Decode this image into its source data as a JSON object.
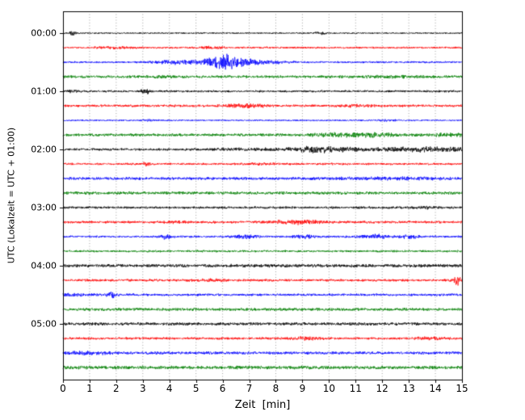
{
  "chart_data": {
    "type": "line",
    "chart_kind": "helicorder-seismogram",
    "title": "",
    "xlabel": "Zeit  [min]",
    "ylabel": "UTC (Lokalzeit = UTC + 01:00)",
    "xlim": [
      0,
      15
    ],
    "minutes_per_line": 15,
    "grid": "dotted-vertical-each-minute",
    "legend": "none",
    "xticks": [
      "0",
      "1",
      "2",
      "3",
      "4",
      "5",
      "6",
      "7",
      "8",
      "9",
      "10",
      "11",
      "12",
      "13",
      "14",
      "15"
    ],
    "ytick_labels": [
      "00:00",
      "01:00",
      "02:00",
      "03:00",
      "04:00",
      "05:00"
    ],
    "colors_cycle": [
      "#000000",
      "#ff0000",
      "#0000ff",
      "#008000"
    ],
    "traces": [
      {
        "start": "00:00",
        "color": "#000000",
        "base": 1.1,
        "events": [
          {
            "c": 0.35,
            "w": 0.08,
            "a": 2.5
          },
          {
            "c": 9.7,
            "w": 0.15,
            "a": 1.3
          }
        ]
      },
      {
        "start": "00:15",
        "color": "#ff0000",
        "base": 1.4,
        "events": [
          {
            "c": 1.9,
            "w": 0.5,
            "a": 1.0
          },
          {
            "c": 5.6,
            "w": 0.3,
            "a": 1.2
          }
        ]
      },
      {
        "start": "00:30",
        "color": "#0000ff",
        "base": 1.3,
        "events": [
          {
            "c": 4.3,
            "w": 0.6,
            "a": 2.5
          },
          {
            "c": 5.6,
            "w": 0.35,
            "a": 5
          },
          {
            "c": 6.1,
            "w": 0.25,
            "a": 7
          },
          {
            "c": 6.6,
            "w": 0.4,
            "a": 4
          },
          {
            "c": 7.5,
            "w": 0.7,
            "a": 2
          }
        ]
      },
      {
        "start": "00:45",
        "color": "#008000",
        "base": 1.9,
        "events": [
          {
            "c": 3.9,
            "w": 0.4,
            "a": 0.8
          },
          {
            "c": 12.3,
            "w": 0.9,
            "a": 0.7
          }
        ]
      },
      {
        "start": "01:00",
        "color": "#000000",
        "base": 1.5,
        "events": [
          {
            "c": 3.1,
            "w": 0.1,
            "a": 3.5
          },
          {
            "c": 0.4,
            "w": 0.15,
            "a": 1.5
          }
        ]
      },
      {
        "start": "01:15",
        "color": "#ff0000",
        "base": 1.7,
        "events": [
          {
            "c": 6.8,
            "w": 0.6,
            "a": 1.8
          },
          {
            "c": 11.0,
            "w": 0.4,
            "a": 1.0
          }
        ]
      },
      {
        "start": "01:30",
        "color": "#0000ff",
        "base": 1.1,
        "events": [
          {
            "c": 3.2,
            "w": 0.2,
            "a": 1.0
          },
          {
            "c": 12.2,
            "w": 0.3,
            "a": 0.8
          }
        ]
      },
      {
        "start": "01:45",
        "color": "#008000",
        "base": 1.9,
        "events": [
          {
            "c": 9.9,
            "w": 0.4,
            "a": 1.2
          },
          {
            "c": 11.3,
            "w": 0.9,
            "a": 2.2
          },
          {
            "c": 14.6,
            "w": 0.6,
            "a": 1.4
          }
        ]
      },
      {
        "start": "02:00",
        "color": "#000000",
        "base": 1.7,
        "events": [
          {
            "c": 7.0,
            "w": 1.0,
            "a": 1.0
          },
          {
            "c": 9.6,
            "w": 0.7,
            "a": 3.5
          },
          {
            "c": 12.5,
            "w": 1.2,
            "a": 2.0
          },
          {
            "c": 14.5,
            "w": 0.8,
            "a": 2.2
          }
        ]
      },
      {
        "start": "02:15",
        "color": "#ff0000",
        "base": 1.5,
        "events": [
          {
            "c": 3.15,
            "w": 0.1,
            "a": 3.0
          },
          {
            "c": 7.5,
            "w": 0.5,
            "a": 0.8
          }
        ]
      },
      {
        "start": "02:30",
        "color": "#0000ff",
        "base": 2.0,
        "events": [
          {
            "c": 12.5,
            "w": 1.5,
            "a": 0.8
          }
        ]
      },
      {
        "start": "02:45",
        "color": "#008000",
        "base": 2.1,
        "events": []
      },
      {
        "start": "03:00",
        "color": "#000000",
        "base": 1.7,
        "events": [
          {
            "c": 13.6,
            "w": 0.3,
            "a": 1.2
          }
        ]
      },
      {
        "start": "03:15",
        "color": "#ff0000",
        "base": 1.7,
        "events": [
          {
            "c": 4.2,
            "w": 0.3,
            "a": 1.0
          },
          {
            "c": 8.8,
            "w": 0.7,
            "a": 2.2
          }
        ]
      },
      {
        "start": "03:30",
        "color": "#0000ff",
        "base": 1.5,
        "events": [
          {
            "c": 3.9,
            "w": 0.15,
            "a": 2.8
          },
          {
            "c": 6.8,
            "w": 0.3,
            "a": 2.0
          },
          {
            "c": 9.1,
            "w": 0.3,
            "a": 1.6
          },
          {
            "c": 11.8,
            "w": 0.4,
            "a": 2.4
          },
          {
            "c": 13.1,
            "w": 0.3,
            "a": 1.8
          }
        ]
      },
      {
        "start": "03:45",
        "color": "#008000",
        "base": 1.5,
        "events": []
      },
      {
        "start": "04:00",
        "color": "#000000",
        "base": 2.3,
        "events": []
      },
      {
        "start": "04:15",
        "color": "#ff0000",
        "base": 1.7,
        "events": [
          {
            "c": 5.5,
            "w": 0.4,
            "a": 1.0
          },
          {
            "c": 14.85,
            "w": 0.12,
            "a": 5.5
          }
        ]
      },
      {
        "start": "04:30",
        "color": "#0000ff",
        "base": 1.7,
        "events": [
          {
            "c": 0.5,
            "w": 0.5,
            "a": 1.0
          },
          {
            "c": 1.85,
            "w": 0.12,
            "a": 3.5
          }
        ]
      },
      {
        "start": "04:45",
        "color": "#008000",
        "base": 2.1,
        "events": []
      },
      {
        "start": "05:00",
        "color": "#000000",
        "base": 2.1,
        "events": []
      },
      {
        "start": "05:15",
        "color": "#ff0000",
        "base": 1.7,
        "events": [
          {
            "c": 9.2,
            "w": 0.4,
            "a": 1.6
          },
          {
            "c": 13.8,
            "w": 0.4,
            "a": 1.2
          }
        ]
      },
      {
        "start": "05:30",
        "color": "#0000ff",
        "base": 2.0,
        "events": [
          {
            "c": 0.8,
            "w": 0.7,
            "a": 1.2
          }
        ]
      },
      {
        "start": "05:45",
        "color": "#008000",
        "base": 2.4,
        "events": []
      }
    ]
  }
}
